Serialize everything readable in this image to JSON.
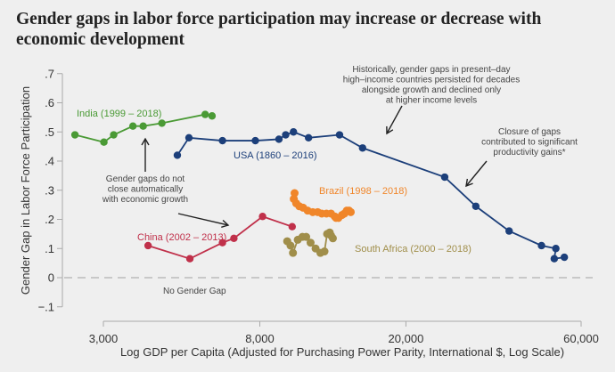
{
  "chart_data": {
    "type": "line",
    "title": "Gender gaps in labor force participation may increase or decrease with economic development",
    "xlabel": "Log GDP per Capita (Adjusted for Purchasing Power Parity, International $, Log Scale)",
    "ylabel": "Gender Gap in Labor Force Participation",
    "xscale": "log",
    "xlim": [
      2300,
      66000
    ],
    "ylim": [
      -0.1,
      0.7
    ],
    "xticks": [
      {
        "value": 3000,
        "label": "3,000"
      },
      {
        "value": 8000,
        "label": "8,000"
      },
      {
        "value": 20000,
        "label": "20,000"
      },
      {
        "value": 60000,
        "label": "60,000"
      }
    ],
    "yticks": [
      {
        "value": 0.7,
        "label": ".7"
      },
      {
        "value": 0.6,
        "label": ".6"
      },
      {
        "value": 0.5,
        "label": ".5"
      },
      {
        "value": 0.4,
        "label": ".4"
      },
      {
        "value": 0.3,
        "label": ".3"
      },
      {
        "value": 0.2,
        "label": ".2"
      },
      {
        "value": 0.1,
        "label": ".1"
      },
      {
        "value": 0,
        "label": "0"
      },
      {
        "value": -0.1,
        "label": "−.1"
      }
    ],
    "grid": false,
    "reference_line": {
      "y": 0,
      "label": "No Gender Gap",
      "style": "dashed"
    },
    "series": [
      {
        "name": "India (1999 – 2018)",
        "color": "#4a9a35",
        "x": [
          2510,
          3010,
          3200,
          3610,
          3850,
          4330,
          5680,
          5930
        ],
        "y": [
          0.49,
          0.465,
          0.49,
          0.52,
          0.52,
          0.53,
          0.56,
          0.555
        ]
      },
      {
        "name": "USA  (1860 – 2016)",
        "color": "#1c3f7a",
        "x": [
          4770,
          5130,
          6330,
          7780,
          9020,
          9410,
          9880,
          10860,
          13190,
          15240,
          25500,
          31000,
          38200,
          46800,
          51200,
          50700,
          54000
        ],
        "y": [
          0.42,
          0.48,
          0.47,
          0.47,
          0.475,
          0.49,
          0.5,
          0.48,
          0.49,
          0.445,
          0.345,
          0.245,
          0.16,
          0.11,
          0.1,
          0.065,
          0.07
        ]
      },
      {
        "name": "China (2002 – 2013)",
        "color": "#c0304a",
        "x": [
          3970,
          5160,
          6330,
          6800,
          8140,
          9800
        ],
        "y": [
          0.11,
          0.065,
          0.12,
          0.135,
          0.21,
          0.175
        ]
      },
      {
        "name": "Brazil (1998 – 2018)",
        "color": "#f0862a",
        "x": [
          9950,
          9900,
          10050,
          10250,
          10500,
          10800,
          11150,
          11500,
          11800,
          12150,
          12500,
          12800,
          12900,
          13100,
          13400,
          13600,
          13800,
          14000,
          14150
        ],
        "y": [
          0.29,
          0.27,
          0.255,
          0.245,
          0.24,
          0.23,
          0.225,
          0.225,
          0.22,
          0.22,
          0.22,
          0.21,
          0.205,
          0.205,
          0.215,
          0.22,
          0.23,
          0.23,
          0.225
        ]
      },
      {
        "name": "South Africa (2000 – 2018)",
        "color": "#a08e4a",
        "x": [
          9500,
          9700,
          9850,
          10150,
          10450,
          10700,
          11000,
          11350,
          11700,
          12000,
          12200,
          12400,
          12500,
          12650
        ],
        "y": [
          0.125,
          0.11,
          0.085,
          0.13,
          0.14,
          0.14,
          0.12,
          0.1,
          0.085,
          0.09,
          0.15,
          0.155,
          0.145,
          0.135
        ]
      }
    ],
    "annotations": [
      {
        "id": "historically",
        "lines": [
          "Historically, gender gaps in present–day",
          "high–income countries persisted for decades",
          "alongside growth and declined only",
          "at higher income levels"
        ]
      },
      {
        "id": "closure",
        "lines": [
          "Closure of gaps",
          "contributed to significant",
          "productivity gains*"
        ]
      },
      {
        "id": "not-automatic",
        "lines": [
          "Gender gaps do not",
          "close automatically",
          "with economic growth"
        ]
      }
    ],
    "legend": "inline labels"
  }
}
